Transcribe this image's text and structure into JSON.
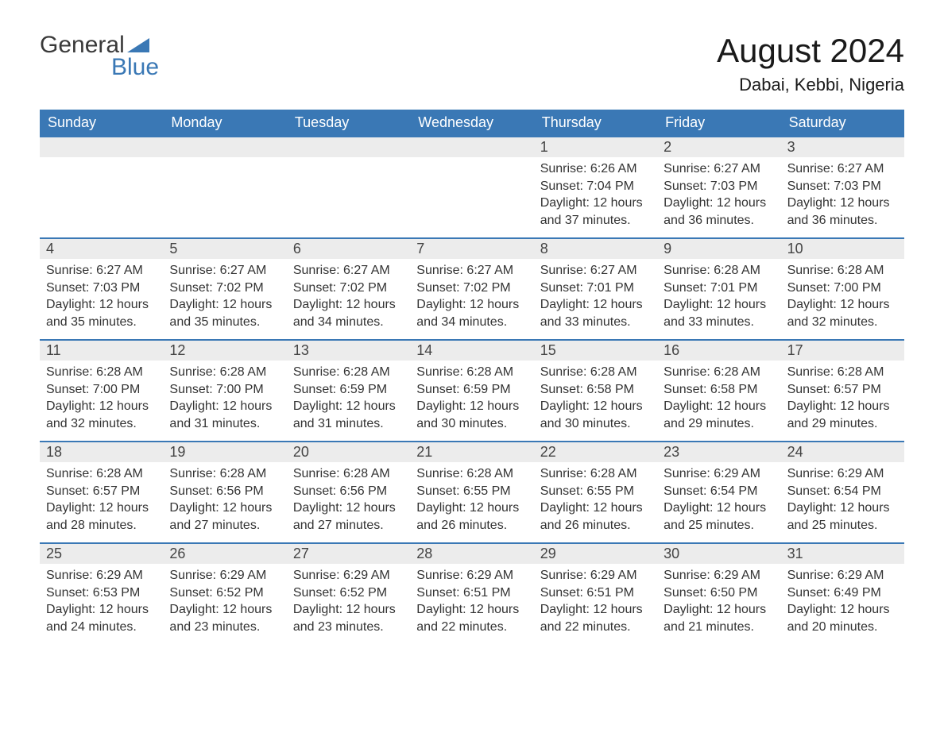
{
  "logo": {
    "word1": "General",
    "word2": "Blue",
    "word1_color": "#3a3a3a",
    "word2_color": "#3a78b5",
    "triangle_color": "#3a78b5",
    "fontsize": 30
  },
  "title": {
    "month": "August 2024",
    "month_fontsize": 42,
    "month_color": "#1a1a1a",
    "location": "Dabai, Kebbi, Nigeria",
    "location_fontsize": 22,
    "location_color": "#1a1a1a"
  },
  "calendar": {
    "header_bg": "#3a78b5",
    "header_fg": "#ffffff",
    "header_fontsize": 18,
    "week_border_color": "#3a78b5",
    "daynum_bg": "#ececec",
    "daynum_color": "#444444",
    "body_color": "#333333",
    "body_fontsize": 16,
    "weekdays": [
      "Sunday",
      "Monday",
      "Tuesday",
      "Wednesday",
      "Thursday",
      "Friday",
      "Saturday"
    ],
    "first_weekday_index": 4,
    "days": [
      {
        "n": 1,
        "sunrise": "6:26 AM",
        "sunset": "7:04 PM",
        "daylight": "12 hours and 37 minutes."
      },
      {
        "n": 2,
        "sunrise": "6:27 AM",
        "sunset": "7:03 PM",
        "daylight": "12 hours and 36 minutes."
      },
      {
        "n": 3,
        "sunrise": "6:27 AM",
        "sunset": "7:03 PM",
        "daylight": "12 hours and 36 minutes."
      },
      {
        "n": 4,
        "sunrise": "6:27 AM",
        "sunset": "7:03 PM",
        "daylight": "12 hours and 35 minutes."
      },
      {
        "n": 5,
        "sunrise": "6:27 AM",
        "sunset": "7:02 PM",
        "daylight": "12 hours and 35 minutes."
      },
      {
        "n": 6,
        "sunrise": "6:27 AM",
        "sunset": "7:02 PM",
        "daylight": "12 hours and 34 minutes."
      },
      {
        "n": 7,
        "sunrise": "6:27 AM",
        "sunset": "7:02 PM",
        "daylight": "12 hours and 34 minutes."
      },
      {
        "n": 8,
        "sunrise": "6:27 AM",
        "sunset": "7:01 PM",
        "daylight": "12 hours and 33 minutes."
      },
      {
        "n": 9,
        "sunrise": "6:28 AM",
        "sunset": "7:01 PM",
        "daylight": "12 hours and 33 minutes."
      },
      {
        "n": 10,
        "sunrise": "6:28 AM",
        "sunset": "7:00 PM",
        "daylight": "12 hours and 32 minutes."
      },
      {
        "n": 11,
        "sunrise": "6:28 AM",
        "sunset": "7:00 PM",
        "daylight": "12 hours and 32 minutes."
      },
      {
        "n": 12,
        "sunrise": "6:28 AM",
        "sunset": "7:00 PM",
        "daylight": "12 hours and 31 minutes."
      },
      {
        "n": 13,
        "sunrise": "6:28 AM",
        "sunset": "6:59 PM",
        "daylight": "12 hours and 31 minutes."
      },
      {
        "n": 14,
        "sunrise": "6:28 AM",
        "sunset": "6:59 PM",
        "daylight": "12 hours and 30 minutes."
      },
      {
        "n": 15,
        "sunrise": "6:28 AM",
        "sunset": "6:58 PM",
        "daylight": "12 hours and 30 minutes."
      },
      {
        "n": 16,
        "sunrise": "6:28 AM",
        "sunset": "6:58 PM",
        "daylight": "12 hours and 29 minutes."
      },
      {
        "n": 17,
        "sunrise": "6:28 AM",
        "sunset": "6:57 PM",
        "daylight": "12 hours and 29 minutes."
      },
      {
        "n": 18,
        "sunrise": "6:28 AM",
        "sunset": "6:57 PM",
        "daylight": "12 hours and 28 minutes."
      },
      {
        "n": 19,
        "sunrise": "6:28 AM",
        "sunset": "6:56 PM",
        "daylight": "12 hours and 27 minutes."
      },
      {
        "n": 20,
        "sunrise": "6:28 AM",
        "sunset": "6:56 PM",
        "daylight": "12 hours and 27 minutes."
      },
      {
        "n": 21,
        "sunrise": "6:28 AM",
        "sunset": "6:55 PM",
        "daylight": "12 hours and 26 minutes."
      },
      {
        "n": 22,
        "sunrise": "6:28 AM",
        "sunset": "6:55 PM",
        "daylight": "12 hours and 26 minutes."
      },
      {
        "n": 23,
        "sunrise": "6:29 AM",
        "sunset": "6:54 PM",
        "daylight": "12 hours and 25 minutes."
      },
      {
        "n": 24,
        "sunrise": "6:29 AM",
        "sunset": "6:54 PM",
        "daylight": "12 hours and 25 minutes."
      },
      {
        "n": 25,
        "sunrise": "6:29 AM",
        "sunset": "6:53 PM",
        "daylight": "12 hours and 24 minutes."
      },
      {
        "n": 26,
        "sunrise": "6:29 AM",
        "sunset": "6:52 PM",
        "daylight": "12 hours and 23 minutes."
      },
      {
        "n": 27,
        "sunrise": "6:29 AM",
        "sunset": "6:52 PM",
        "daylight": "12 hours and 23 minutes."
      },
      {
        "n": 28,
        "sunrise": "6:29 AM",
        "sunset": "6:51 PM",
        "daylight": "12 hours and 22 minutes."
      },
      {
        "n": 29,
        "sunrise": "6:29 AM",
        "sunset": "6:51 PM",
        "daylight": "12 hours and 22 minutes."
      },
      {
        "n": 30,
        "sunrise": "6:29 AM",
        "sunset": "6:50 PM",
        "daylight": "12 hours and 21 minutes."
      },
      {
        "n": 31,
        "sunrise": "6:29 AM",
        "sunset": "6:49 PM",
        "daylight": "12 hours and 20 minutes."
      }
    ],
    "labels": {
      "sunrise_prefix": "Sunrise: ",
      "sunset_prefix": "Sunset: ",
      "daylight_prefix": "Daylight: "
    }
  }
}
